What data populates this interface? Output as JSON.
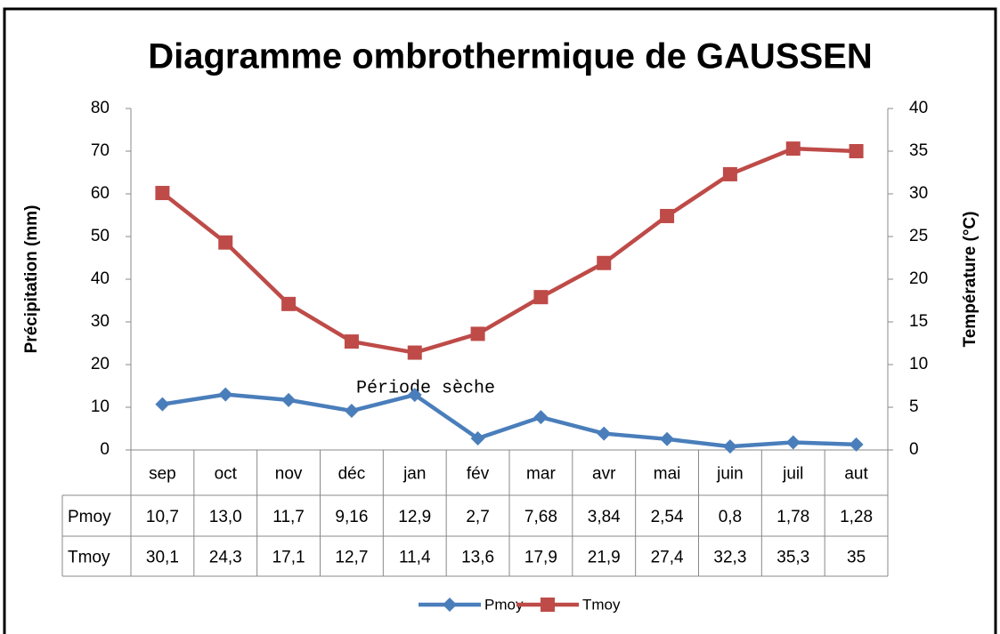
{
  "chart_data": {
    "type": "line",
    "title": "Diagramme ombrothermique de GAUSSEN",
    "y_label": "Précipitation (mm)",
    "y2_label": "Température (°C)",
    "annotation": "Période sèche",
    "categories": [
      "sep",
      "oct",
      "nov",
      "déc",
      "jan",
      "fév",
      "mar",
      "avr",
      "mai",
      "juin",
      "juil",
      "aut"
    ],
    "series": [
      {
        "name": "Pmoy",
        "color": "#4a7ebb",
        "marker": "diamond",
        "values": [
          10.7,
          13.0,
          11.7,
          9.16,
          12.9,
          2.7,
          7.68,
          3.84,
          2.54,
          0.8,
          1.78,
          1.28
        ],
        "value_labels": [
          "10,7",
          "13,0",
          "11,7",
          "9,16",
          "12,9",
          "2,7",
          "7,68",
          "3,84",
          "2,54",
          "0,8",
          "1,78",
          "1,28"
        ]
      },
      {
        "name": "Tmoy",
        "color": "#be4b48",
        "marker": "square",
        "axis": "y2",
        "values": [
          30.1,
          24.3,
          17.1,
          12.7,
          11.4,
          13.6,
          17.9,
          21.9,
          27.4,
          32.3,
          35.3,
          35
        ],
        "value_labels": [
          "30,1",
          "24,3",
          "17,1",
          "12,7",
          "11,4",
          "13,6",
          "17,9",
          "21,9",
          "27,4",
          "32,3",
          "35,3",
          "35"
        ]
      }
    ],
    "ylim": [
      0,
      80
    ],
    "yticks": [
      0,
      10,
      20,
      30,
      40,
      50,
      60,
      70,
      80
    ],
    "y2lim": [
      0,
      40
    ],
    "y2ticks": [
      0,
      5,
      10,
      15,
      20,
      25,
      30,
      35,
      40
    ],
    "legend": "bottom"
  }
}
